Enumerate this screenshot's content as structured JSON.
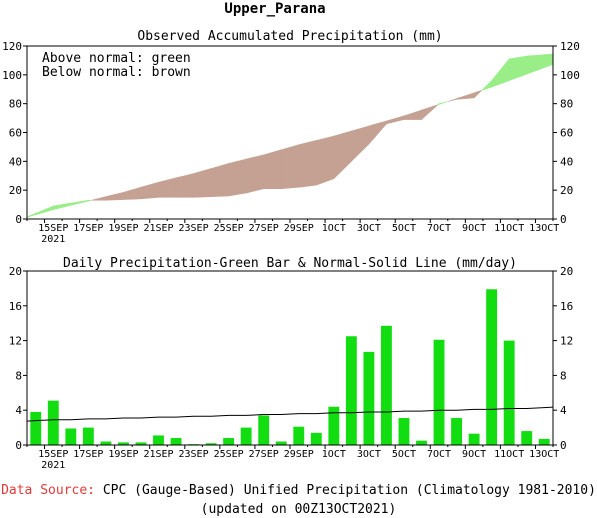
{
  "page_title": "Upper_Parana",
  "footer": {
    "source_label": "Data Source:",
    "source_text": " CPC (Gauge-Based) Unified Precipitation (Climatology 1981-2010)",
    "updated": "(updated on 00Z13OCT2021)"
  },
  "colors": {
    "above": "#99ee88",
    "below": "#c4a192",
    "bar": "#11dd11",
    "normal_line": "#000000"
  },
  "chart_data": [
    {
      "type": "area",
      "title": "Observed Accumulated Precipitation (mm)",
      "legend": [
        "Above normal: green",
        "Below normal: brown"
      ],
      "legend_placement": "top-left",
      "x_ticks": [
        "15SEP",
        "17SEP",
        "19SEP",
        "21SEP",
        "23SEP",
        "25SEP",
        "27SEP",
        "29SEP",
        "1OCT",
        "3OCT",
        "5OCT",
        "7OCT",
        "9OCT",
        "11OCT",
        "13OCT"
      ],
      "x_year": "2021",
      "ylim": [
        0,
        120
      ],
      "y_ticks": [
        0,
        20,
        40,
        60,
        80,
        100,
        120
      ],
      "days": [
        "14SEP",
        "15SEP",
        "16SEP",
        "17SEP",
        "18SEP",
        "19SEP",
        "20SEP",
        "21SEP",
        "22SEP",
        "23SEP",
        "24SEP",
        "25SEP",
        "26SEP",
        "27SEP",
        "28SEP",
        "29SEP",
        "30SEP",
        "1OCT",
        "2OCT",
        "3OCT",
        "4OCT",
        "5OCT",
        "6OCT",
        "7OCT",
        "8OCT",
        "9OCT",
        "10OCT",
        "11OCT",
        "12OCT",
        "13OCT"
      ],
      "series": [
        {
          "name": "observed",
          "values": [
            4,
            9,
            11,
            13,
            13,
            13.5,
            14,
            15,
            15,
            15,
            15.5,
            16,
            18,
            21,
            21,
            22,
            23.5,
            28,
            40,
            52,
            66,
            69,
            69,
            80,
            83,
            84,
            96,
            111,
            113,
            114
          ]
        },
        {
          "name": "normal",
          "values": [
            3,
            6.5,
            9.5,
            12.5,
            15.5,
            18.5,
            22,
            25.5,
            28.5,
            31.5,
            35,
            38.5,
            41.5,
            44.5,
            48,
            51.5,
            54.5,
            57.5,
            61,
            64.5,
            68,
            71.5,
            75.5,
            79.5,
            83.5,
            87.5,
            91.5,
            96,
            100.5,
            105
          ]
        }
      ]
    },
    {
      "type": "bar",
      "title": "Daily Precipitation-Green Bar & Normal-Solid Line (mm/day)",
      "x_ticks": [
        "15SEP",
        "17SEP",
        "19SEP",
        "21SEP",
        "23SEP",
        "25SEP",
        "27SEP",
        "29SEP",
        "1OCT",
        "3OCT",
        "5OCT",
        "7OCT",
        "9OCT",
        "11OCT",
        "13OCT"
      ],
      "x_year": "2021",
      "ylim": [
        0,
        20
      ],
      "y_ticks": [
        0,
        4,
        8,
        12,
        16,
        20
      ],
      "categories": [
        "14SEP",
        "15SEP",
        "16SEP",
        "17SEP",
        "18SEP",
        "19SEP",
        "20SEP",
        "21SEP",
        "22SEP",
        "23SEP",
        "24SEP",
        "25SEP",
        "26SEP",
        "27SEP",
        "28SEP",
        "29SEP",
        "30SEP",
        "1OCT",
        "2OCT",
        "3OCT",
        "4OCT",
        "5OCT",
        "6OCT",
        "7OCT",
        "8OCT",
        "9OCT",
        "10OCT",
        "11OCT",
        "12OCT",
        "13OCT"
      ],
      "series": [
        {
          "name": "daily",
          "values": [
            3.8,
            5.1,
            1.9,
            2.0,
            0.4,
            0.3,
            0.3,
            1.1,
            0.8,
            0.1,
            0.2,
            0.8,
            2.0,
            3.4,
            0.4,
            2.1,
            1.4,
            4.4,
            12.5,
            10.7,
            13.7,
            3.1,
            0.5,
            12.1,
            3.1,
            1.3,
            17.9,
            12.0,
            1.6,
            0.7
          ]
        },
        {
          "name": "normal",
          "values": [
            2.8,
            2.9,
            2.9,
            3.0,
            3.0,
            3.1,
            3.1,
            3.2,
            3.2,
            3.3,
            3.3,
            3.4,
            3.4,
            3.5,
            3.5,
            3.6,
            3.6,
            3.7,
            3.7,
            3.8,
            3.8,
            3.9,
            3.9,
            4.0,
            4.0,
            4.1,
            4.1,
            4.2,
            4.2,
            4.3
          ]
        }
      ]
    }
  ]
}
